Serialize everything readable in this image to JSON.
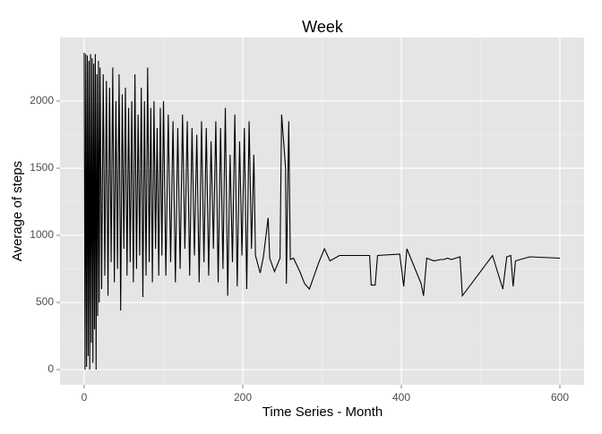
{
  "chart_data": {
    "type": "line",
    "title": "Week",
    "x_label": "Time Series - Month",
    "y_label": "Average of steps",
    "x": [
      0,
      1,
      2,
      3,
      4,
      5,
      6,
      7,
      8,
      9,
      10,
      11,
      12,
      13,
      14,
      15,
      16,
      17,
      18,
      19,
      20,
      22,
      24,
      26,
      28,
      30,
      32,
      34,
      36,
      38,
      40,
      42,
      44,
      46,
      48,
      50,
      52,
      54,
      56,
      58,
      60,
      62,
      64,
      66,
      68,
      70,
      72,
      74,
      76,
      78,
      80,
      82,
      84,
      86,
      88,
      90,
      92,
      94,
      96,
      98,
      100,
      103,
      106,
      109,
      112,
      115,
      118,
      121,
      124,
      127,
      130,
      133,
      136,
      139,
      142,
      145,
      148,
      151,
      154,
      157,
      160,
      163,
      166,
      169,
      172,
      175,
      178,
      181,
      184,
      187,
      190,
      193,
      196,
      199,
      202,
      205,
      208,
      211,
      214,
      216,
      222,
      226,
      232,
      234,
      240,
      247,
      249,
      254,
      255,
      258,
      260,
      264,
      272,
      278,
      284,
      296,
      303,
      310,
      322,
      360,
      362,
      367,
      370,
      398,
      403,
      407,
      425,
      428,
      432,
      441,
      450,
      454,
      458,
      463,
      474,
      477,
      515,
      528,
      533,
      538,
      541,
      544,
      562,
      600
    ],
    "series": [
      {
        "name": "Average of steps",
        "color": "#000000",
        "values": [
          2360,
          0,
          2350,
          20,
          2340,
          100,
          2300,
          0,
          2350,
          200,
          2320,
          50,
          2280,
          300,
          2350,
          0,
          2200,
          400,
          2300,
          500,
          2250,
          600,
          2200,
          700,
          2150,
          550,
          2100,
          800,
          2250,
          650,
          2000,
          750,
          2200,
          440,
          2050,
          900,
          2100,
          700,
          1950,
          800,
          2000,
          650,
          2200,
          750,
          1900,
          850,
          2100,
          540,
          2000,
          700,
          2250,
          800,
          1950,
          650,
          2000,
          900,
          1800,
          700,
          1950,
          850,
          2000,
          700,
          1900,
          800,
          1850,
          650,
          1800,
          750,
          1900,
          900,
          1850,
          700,
          1800,
          850,
          1750,
          650,
          1850,
          800,
          1800,
          700,
          1700,
          900,
          1850,
          650,
          1800,
          750,
          1950,
          550,
          1600,
          800,
          1900,
          620,
          1700,
          850,
          1800,
          600,
          1850,
          900,
          1600,
          850,
          720,
          840,
          1130,
          830,
          730,
          830,
          1900,
          1500,
          640,
          1850,
          820,
          830,
          730,
          640,
          600,
          800,
          900,
          810,
          850,
          850,
          630,
          630,
          850,
          860,
          620,
          900,
          640,
          550,
          830,
          810,
          820,
          820,
          830,
          820,
          840,
          550,
          850,
          600,
          840,
          850,
          620,
          810,
          840,
          830
        ]
      }
    ],
    "xlim": [
      -30.5,
      630.5
    ],
    "ylim": [
      -113,
      2473
    ],
    "xticks": [
      0,
      200,
      400,
      600
    ],
    "yticks": [
      0,
      500,
      1000,
      1500,
      2000
    ],
    "grid": true
  }
}
